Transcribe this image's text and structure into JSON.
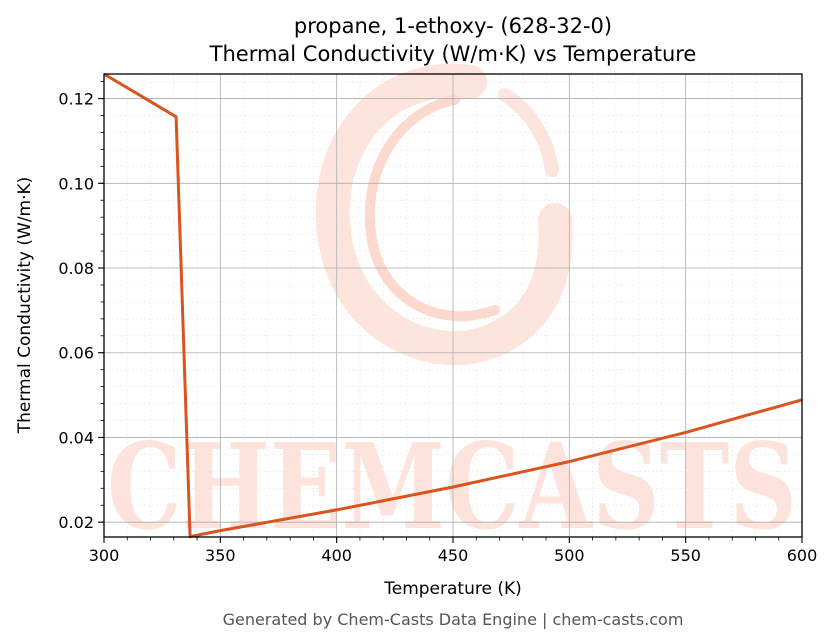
{
  "colors": {
    "line": "#d9541e",
    "watermark": "#fde3dc",
    "grid_major": "#b0b0b0",
    "grid_minor": "#e6e6e6",
    "footer": "#555555"
  },
  "watermark": {
    "text": "CHEMCASTS",
    "icon": "swirl-c-logo"
  },
  "footer": {
    "text": "Generated by Chem-Casts Data Engine | chem-casts.com"
  },
  "chart_data": {
    "type": "line",
    "title": "propane, 1-ethoxy- (628-32-0)",
    "subtitle": "Thermal Conductivity (W/m·K) vs Temperature",
    "xlabel": "Temperature (K)",
    "ylabel": "Thermal Conductivity (W/m·K)",
    "xlim": [
      300,
      600
    ],
    "ylim": [
      0.0165,
      0.1258
    ],
    "xticks": [
      300,
      350,
      400,
      450,
      500,
      550,
      600
    ],
    "xtick_labels": [
      "300",
      "350",
      "400",
      "450",
      "500",
      "550",
      "600"
    ],
    "yticks": [
      0.02,
      0.04,
      0.06,
      0.08,
      0.1,
      0.12
    ],
    "ytick_labels": [
      "0.02",
      "0.04",
      "0.06",
      "0.08",
      "0.10",
      "0.12"
    ],
    "grid": true,
    "minor_grid": true,
    "series": [
      {
        "x": [
          300,
          331,
          337,
          350,
          400,
          450,
          500,
          550,
          600
        ],
        "y": [
          0.1258,
          0.1157,
          0.0166,
          0.018,
          0.0229,
          0.0283,
          0.0343,
          0.0412,
          0.0489
        ]
      }
    ]
  }
}
